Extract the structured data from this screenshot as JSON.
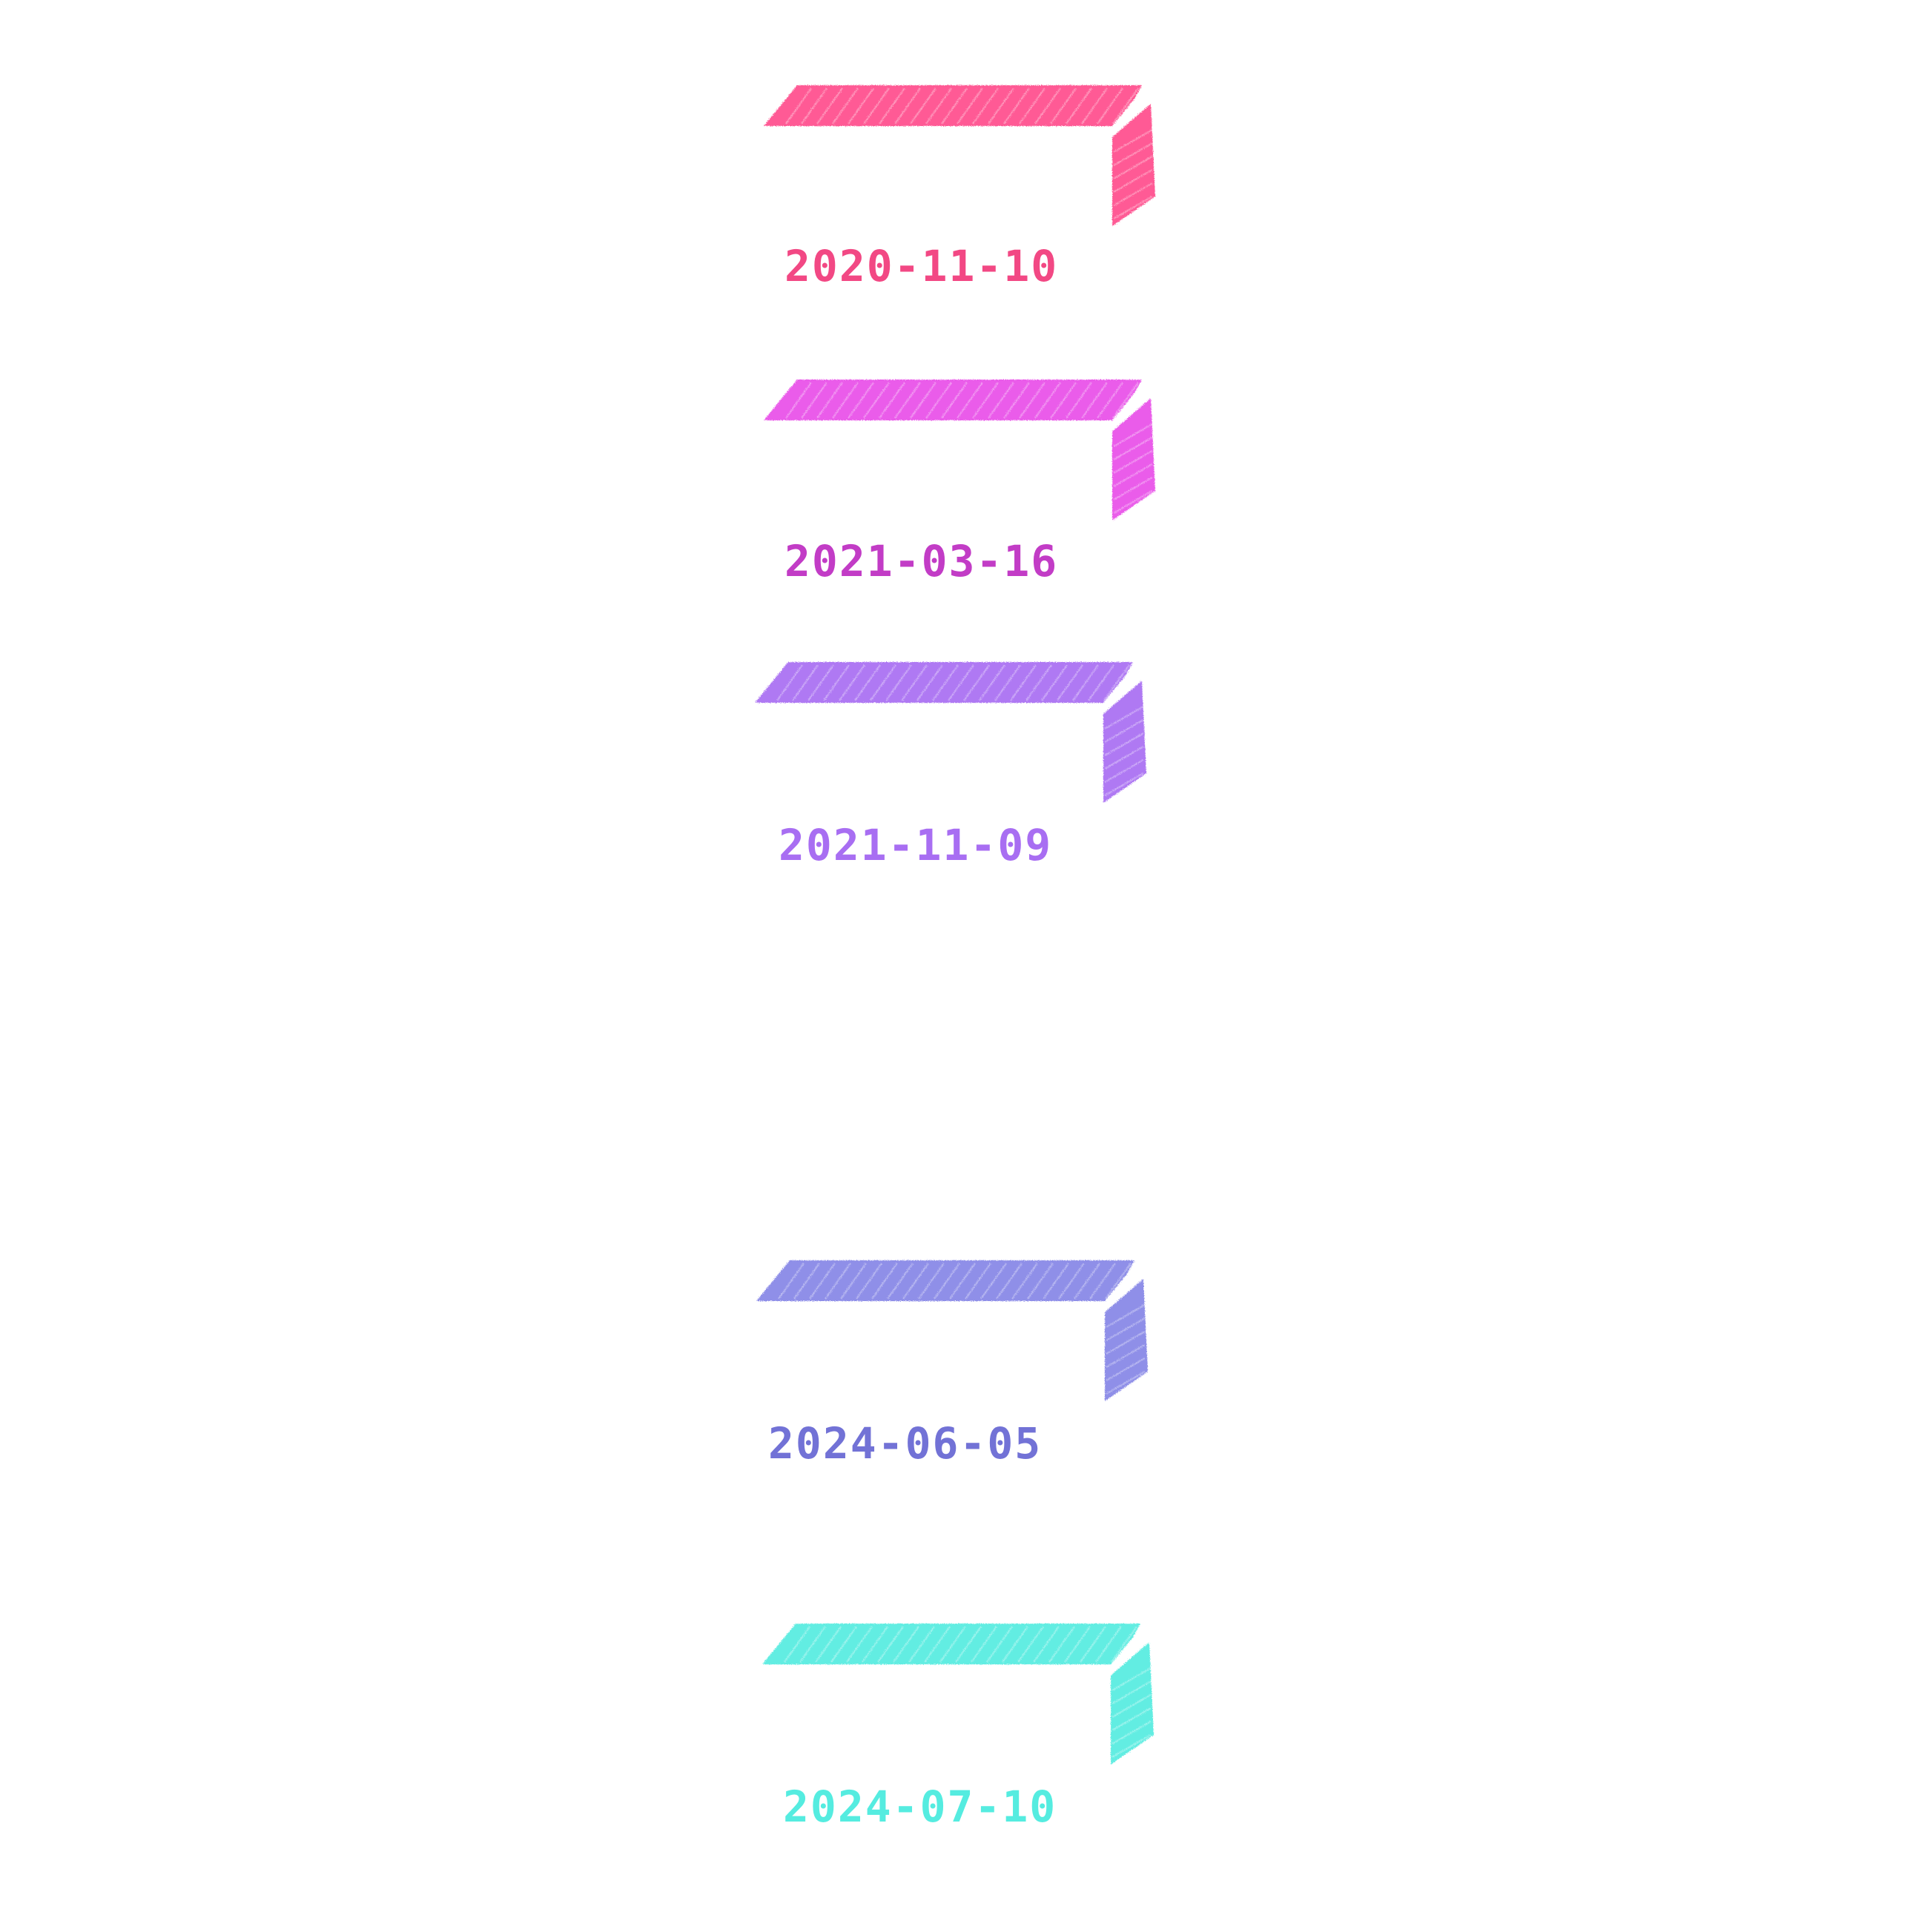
{
  "timeline": {
    "entries": [
      {
        "date": "2020-11-10",
        "color": "#ff4d8c"
      },
      {
        "date": "2021-03-16",
        "color": "#e84ee8"
      },
      {
        "date": "2021-11-09",
        "color": "#a86ef2"
      },
      {
        "date": "2024-06-05",
        "color": "#8585e6"
      },
      {
        "date": "2024-07-10",
        "color": "#55ece0"
      }
    ],
    "label_colors": [
      "#f24884",
      "#c23cc6",
      "#a86ef2",
      "#7272d6",
      "#55ece0"
    ]
  }
}
